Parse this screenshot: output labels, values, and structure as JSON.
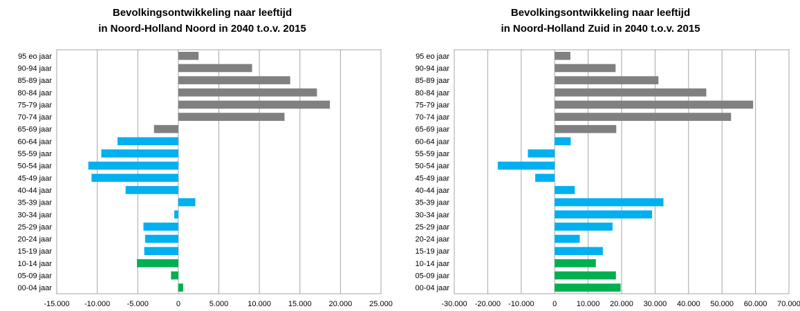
{
  "chart_data": [
    {
      "type": "bar",
      "orientation": "horizontal",
      "title_lines": [
        "Bevolkingsontwikkeling naar leeftijd",
        "in Noord-Holland Noord in 2040 t.o.v. 2015"
      ],
      "xlabel": "",
      "ylabel": "",
      "xlim": [
        -15000,
        25000
      ],
      "ticks": [
        -15000,
        -10000,
        -5000,
        0,
        5000,
        10000,
        15000,
        20000,
        25000
      ],
      "tick_labels": [
        "-15.000",
        "-10.000",
        "-5.000",
        "0",
        "5.000",
        "10.000",
        "15.000",
        "20.000",
        "25.000"
      ],
      "grid": true,
      "categories": [
        "95 eo jaar",
        "90-94 jaar",
        "85-89 jaar",
        "80-84 jaar",
        "75-79 jaar",
        "70-74 jaar",
        "65-69 jaar",
        "60-64 jaar",
        "55-59 jaar",
        "50-54 jaar",
        "45-49 jaar",
        "40-44 jaar",
        "35-39 jaar",
        "30-34 jaar",
        "25-29 jaar",
        "20-24 jaar",
        "15-19 jaar",
        "10-14 jaar",
        "05-09 jaar",
        "00-04 jaar"
      ],
      "values": [
        2500,
        9100,
        13800,
        17100,
        18700,
        13100,
        -3000,
        -7500,
        -9500,
        -11100,
        -10700,
        -6500,
        2100,
        -500,
        -4300,
        -4100,
        -4200,
        -5100,
        -900,
        600
      ],
      "bar_colors": [
        "#808080",
        "#808080",
        "#808080",
        "#808080",
        "#808080",
        "#808080",
        "#808080",
        "#00b0f0",
        "#00b0f0",
        "#00b0f0",
        "#00b0f0",
        "#00b0f0",
        "#00b0f0",
        "#00b0f0",
        "#00b0f0",
        "#00b0f0",
        "#00b0f0",
        "#00b050",
        "#00b050",
        "#00b050"
      ]
    },
    {
      "type": "bar",
      "orientation": "horizontal",
      "title_lines": [
        "Bevolkingsontwikkeling naar leeftijd",
        "in Noord-Holland Zuid in 2040 t.o.v. 2015"
      ],
      "xlabel": "",
      "ylabel": "",
      "xlim": [
        -30000,
        70000
      ],
      "ticks": [
        -30000,
        -20000,
        -10000,
        0,
        10000,
        20000,
        30000,
        40000,
        50000,
        60000,
        70000
      ],
      "tick_labels": [
        "-30.000",
        "-20.000",
        "-10.000",
        "0",
        "10.000",
        "20.000",
        "30.000",
        "40.000",
        "50.000",
        "60.000",
        "70.000"
      ],
      "grid": true,
      "categories": [
        "95 eo jaar",
        "90-94 jaar",
        "85-89 jaar",
        "80-84 jaar",
        "75-79 jaar",
        "70-74 jaar",
        "65-69 jaar",
        "60-64 jaar",
        "55-59 jaar",
        "50-54 jaar",
        "45-49 jaar",
        "40-44 jaar",
        "35-39 jaar",
        "30-34 jaar",
        "25-29 jaar",
        "20-24 jaar",
        "15-19 jaar",
        "10-14 jaar",
        "05-09 jaar",
        "00-04 jaar"
      ],
      "values": [
        4700,
        18200,
        31000,
        45300,
        59300,
        52700,
        18400,
        4800,
        -8000,
        -17000,
        -5800,
        6000,
        32500,
        29100,
        17300,
        7500,
        14400,
        12300,
        18300,
        19700
      ],
      "bar_colors": [
        "#808080",
        "#808080",
        "#808080",
        "#808080",
        "#808080",
        "#808080",
        "#808080",
        "#00b0f0",
        "#00b0f0",
        "#00b0f0",
        "#00b0f0",
        "#00b0f0",
        "#00b0f0",
        "#00b0f0",
        "#00b0f0",
        "#00b0f0",
        "#00b0f0",
        "#00b050",
        "#00b050",
        "#00b050"
      ]
    }
  ]
}
